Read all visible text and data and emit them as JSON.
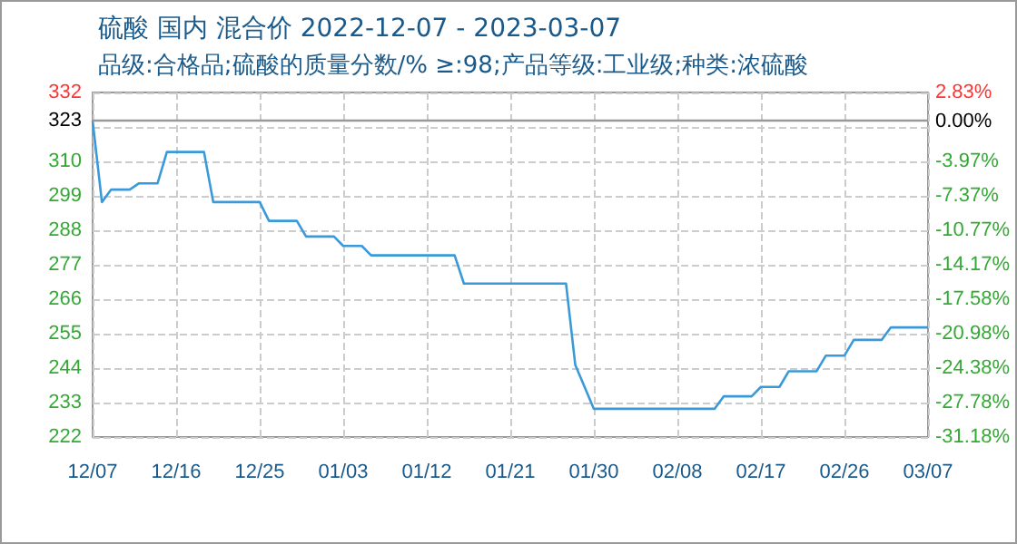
{
  "chart_data": {
    "type": "line",
    "title": "硫酸 国内 混合价 2022-12-07 - 2023-03-07",
    "subtitle": "品级:合格品;硫酸的质量分数/% ≥:98;产品等级:工业级;种类:浓硫酸",
    "x": [
      "2022-12-07",
      "2022-12-08",
      "2022-12-09",
      "2022-12-11",
      "2022-12-12",
      "2022-12-14",
      "2022-12-15",
      "2022-12-19",
      "2022-12-20",
      "2022-12-25",
      "2022-12-26",
      "2022-12-29",
      "2022-12-30",
      "2023-01-02",
      "2023-01-03",
      "2023-01-05",
      "2023-01-06",
      "2023-01-15",
      "2023-01-16",
      "2023-01-27",
      "2023-01-28",
      "2023-01-29",
      "2023-01-30",
      "2023-02-12",
      "2023-02-13",
      "2023-02-16",
      "2023-02-17",
      "2023-02-19",
      "2023-02-20",
      "2023-02-23",
      "2023-02-24",
      "2023-02-26",
      "2023-02-27",
      "2023-03-02",
      "2023-03-03",
      "2023-03-07"
    ],
    "series": [
      {
        "color": "#3a9ad9",
        "values": [
          323,
          297,
          301,
          301,
          303,
          303,
          313,
          313,
          297,
          297,
          291,
          291,
          286,
          286,
          283,
          283,
          280,
          280,
          271,
          271,
          245,
          238,
          231,
          231,
          235,
          235,
          238,
          238,
          243,
          243,
          248,
          248,
          253,
          253,
          257,
          257
        ]
      }
    ],
    "xlim": [
      "2022-12-07",
      "2023-03-07"
    ],
    "xticks": [
      {
        "value": "2022-12-07",
        "label": "12/07"
      },
      {
        "value": "2022-12-16",
        "label": "12/16"
      },
      {
        "value": "2022-12-25",
        "label": "12/25"
      },
      {
        "value": "2023-01-03",
        "label": "01/03"
      },
      {
        "value": "2023-01-12",
        "label": "01/12"
      },
      {
        "value": "2023-01-21",
        "label": "01/21"
      },
      {
        "value": "2023-01-30",
        "label": "01/30"
      },
      {
        "value": "2023-02-08",
        "label": "02/08"
      },
      {
        "value": "2023-02-17",
        "label": "02/17"
      },
      {
        "value": "2023-02-26",
        "label": "02/26"
      },
      {
        "value": "2023-03-07",
        "label": "03/07"
      }
    ],
    "ylim": [
      222,
      332
    ],
    "yticks": [
      222,
      233,
      244,
      255,
      266,
      277,
      288,
      299,
      310,
      {
        "value": 321,
        "label": null
      },
      323,
      332
    ],
    "y2lim": [
      -31.18,
      2.83
    ],
    "y2ticks": [
      {
        "value": -31.18,
        "label": "-31.18%"
      },
      {
        "value": -27.78,
        "label": "-27.78%"
      },
      {
        "value": -24.38,
        "label": "-24.38%"
      },
      {
        "value": -20.98,
        "label": "-20.98%"
      },
      {
        "value": -17.58,
        "label": "-17.58%"
      },
      {
        "value": -14.17,
        "label": "-14.17%"
      },
      {
        "value": -10.77,
        "label": "-10.77%"
      },
      {
        "value": -7.37,
        "label": "-7.37%"
      },
      {
        "value": -3.97,
        "label": "-3.97%"
      },
      {
        "value": 0,
        "label": "0.00%"
      },
      {
        "value": 2.83,
        "label": "2.83%"
      }
    ],
    "ref_lines": [
      {
        "axis": "y",
        "value": 323,
        "color": "#999999"
      }
    ],
    "grid": true,
    "marker": "none",
    "line_style": "solid"
  }
}
